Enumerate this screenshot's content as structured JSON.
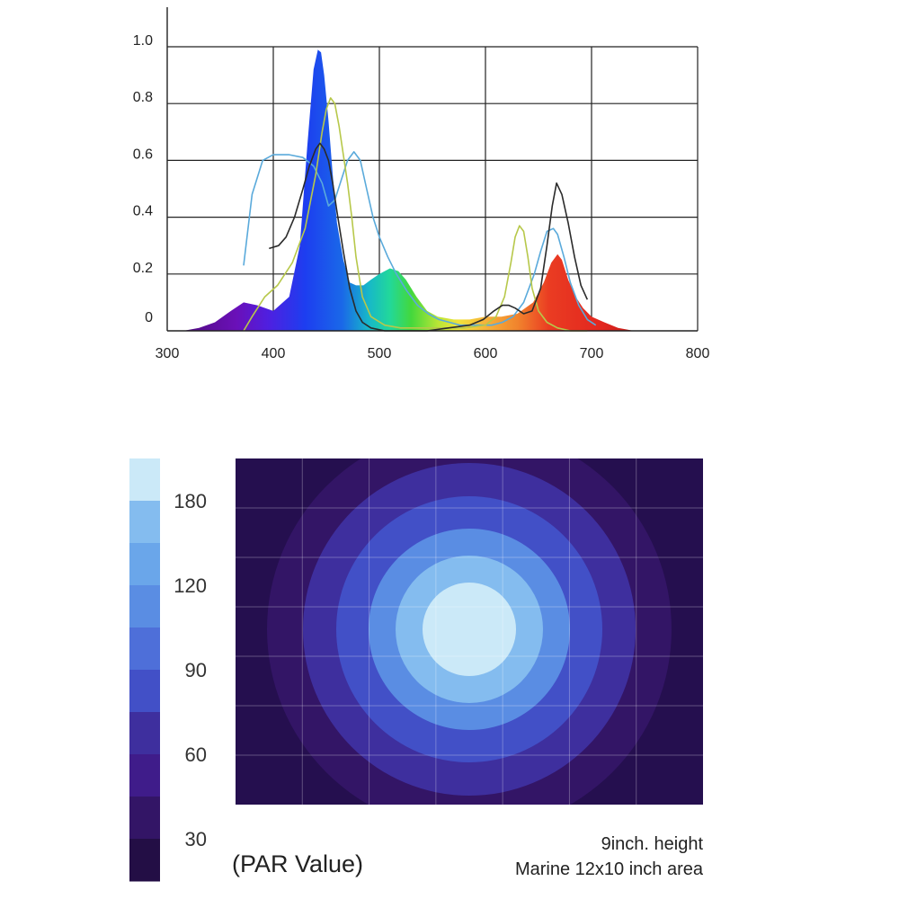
{
  "chart_data": [
    {
      "type": "area",
      "title": "",
      "xlabel": "",
      "ylabel": "",
      "xlim": [
        300,
        800
      ],
      "ylim": [
        0,
        1.05
      ],
      "x_ticks": [
        "300",
        "400",
        "500",
        "600",
        "700",
        "800"
      ],
      "y_ticks": [
        "0",
        "0.2",
        "0.4",
        "0.6",
        "0.8",
        "1.0"
      ],
      "grid": true,
      "series": [
        {
          "style": "spectrum-fill",
          "x": [
            315,
            330,
            345,
            360,
            372,
            385,
            400,
            415,
            425,
            432,
            438,
            442,
            445,
            448,
            452,
            456,
            460,
            466,
            472,
            478,
            485,
            492,
            500,
            510,
            518,
            525,
            535,
            545,
            555,
            570,
            585,
            600,
            615,
            630,
            645,
            655,
            662,
            668,
            672,
            678,
            685,
            692,
            700,
            712,
            725,
            740
          ],
          "values": [
            0.0,
            0.01,
            0.03,
            0.07,
            0.1,
            0.09,
            0.07,
            0.12,
            0.3,
            0.65,
            0.92,
            0.99,
            0.98,
            0.9,
            0.74,
            0.55,
            0.38,
            0.25,
            0.17,
            0.16,
            0.16,
            0.18,
            0.2,
            0.22,
            0.21,
            0.18,
            0.12,
            0.07,
            0.05,
            0.04,
            0.04,
            0.05,
            0.05,
            0.06,
            0.1,
            0.17,
            0.24,
            0.27,
            0.25,
            0.18,
            0.12,
            0.08,
            0.05,
            0.03,
            0.01,
            0.0
          ]
        },
        {
          "color": "#5aaadb",
          "x": [
            372,
            380,
            390,
            400,
            415,
            428,
            438,
            446,
            452,
            458,
            464,
            470,
            476,
            482,
            488,
            494,
            500,
            508,
            516,
            526,
            536,
            546,
            556,
            566,
            576,
            586,
            596,
            606,
            616,
            626,
            636,
            646,
            652,
            658,
            664,
            668,
            674,
            680,
            688,
            696,
            704
          ],
          "values": [
            0.23,
            0.48,
            0.6,
            0.62,
            0.62,
            0.61,
            0.58,
            0.52,
            0.44,
            0.46,
            0.53,
            0.6,
            0.63,
            0.6,
            0.5,
            0.4,
            0.33,
            0.26,
            0.2,
            0.14,
            0.09,
            0.06,
            0.04,
            0.03,
            0.02,
            0.02,
            0.02,
            0.02,
            0.03,
            0.05,
            0.1,
            0.2,
            0.28,
            0.35,
            0.36,
            0.34,
            0.26,
            0.17,
            0.09,
            0.04,
            0.02
          ]
        },
        {
          "color": "#b7c84a",
          "x": [
            372,
            380,
            392,
            404,
            418,
            430,
            440,
            446,
            450,
            454,
            458,
            462,
            466,
            470,
            474,
            478,
            484,
            492,
            505,
            520,
            540,
            560,
            580,
            600,
            610,
            618,
            624,
            628,
            632,
            636,
            640,
            644,
            650,
            658,
            668,
            680,
            696
          ],
          "values": [
            0.0,
            0.05,
            0.12,
            0.16,
            0.24,
            0.36,
            0.55,
            0.7,
            0.78,
            0.82,
            0.8,
            0.72,
            0.62,
            0.52,
            0.4,
            0.26,
            0.12,
            0.05,
            0.02,
            0.01,
            0.01,
            0.01,
            0.01,
            0.02,
            0.05,
            0.12,
            0.24,
            0.33,
            0.37,
            0.35,
            0.26,
            0.15,
            0.07,
            0.03,
            0.01,
            0.0,
            0.0
          ]
        },
        {
          "color": "#2b2b2b",
          "x": [
            396,
            405,
            412,
            420,
            428,
            434,
            440,
            444,
            448,
            452,
            456,
            460,
            466,
            472,
            478,
            484,
            492,
            505,
            525,
            545,
            565,
            585,
            598,
            608,
            616,
            622,
            628,
            636,
            644,
            652,
            658,
            663,
            667,
            672,
            678,
            684,
            690,
            696
          ],
          "values": [
            0.29,
            0.3,
            0.33,
            0.4,
            0.5,
            0.58,
            0.64,
            0.66,
            0.64,
            0.6,
            0.52,
            0.42,
            0.28,
            0.15,
            0.07,
            0.03,
            0.01,
            0.0,
            0.0,
            0.0,
            0.01,
            0.02,
            0.04,
            0.07,
            0.09,
            0.09,
            0.08,
            0.06,
            0.07,
            0.15,
            0.3,
            0.44,
            0.52,
            0.48,
            0.38,
            0.26,
            0.16,
            0.11
          ]
        }
      ]
    },
    {
      "type": "heatmap",
      "title": "",
      "colorbar": {
        "ticks": [
          "180",
          "120",
          "90",
          "60",
          "30"
        ],
        "colors": [
          "#cbe9f8",
          "#84bcef",
          "#6aa6ea",
          "#5a8de3",
          "#4e6fd9",
          "#4250c7",
          "#3e2f9e",
          "#3f1c8a",
          "#331566",
          "#230e45"
        ],
        "unit": "(PAR Value)"
      },
      "rings_inner_to_outer": [
        "#cbe9f8",
        "#84bcef",
        "#5a8de3",
        "#4250c7",
        "#3e2f9e",
        "#331566"
      ],
      "background": "#250f4f",
      "grid_columns": 7,
      "grid_rows": 7,
      "annotation": {
        "line1": "9inch. height",
        "line2": "Marine 12x10 inch area"
      }
    }
  ]
}
